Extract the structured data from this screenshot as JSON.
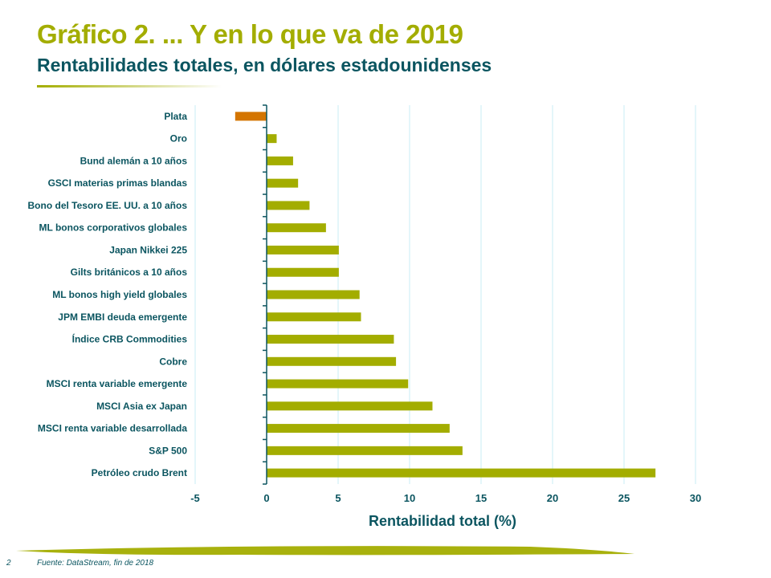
{
  "header": {
    "title": "Gráfico 2. ... Y en lo que va de 2019",
    "subtitle": "Rentabilidades totales, en dólares estadounidenses"
  },
  "footer": {
    "page": "2",
    "source": "Fuente: DataStream, fin de 2018"
  },
  "chart_data": {
    "type": "bar",
    "orientation": "horizontal",
    "categories": [
      "Plata",
      "Oro",
      "Bund alemán a 10 años",
      "GSCI materias primas blandas",
      "Bono del Tesoro EE. UU. a 10 años",
      "ML bonos corporativos globales",
      "Japan Nikkei 225",
      "Gilts británicos a 10 años",
      "ML bonos high yield globales",
      "JPM EMBI deuda emergente",
      "Índice CRB Commodities",
      "Cobre",
      "MSCI renta variable emergente",
      "MSCI Asia ex Japan",
      "MSCI renta variable desarrollada",
      "S&P 500",
      "Petróleo crudo Brent"
    ],
    "values": [
      -2.2,
      0.7,
      1.85,
      2.2,
      3.0,
      4.15,
      5.05,
      5.05,
      6.5,
      6.6,
      8.9,
      9.05,
      9.9,
      11.6,
      12.8,
      13.7,
      27.2
    ],
    "xlabel": "Rentabilidad total (%)",
    "xlim": [
      -5,
      30
    ],
    "xticks": [
      "-5",
      "0",
      "5",
      "10",
      "15",
      "20",
      "25",
      "30"
    ],
    "grid": "vertical",
    "colors": {
      "positive": "#a3ad00",
      "negative": "#d47500",
      "grid": "#c8ecf4",
      "axis": "#0b5560"
    }
  }
}
